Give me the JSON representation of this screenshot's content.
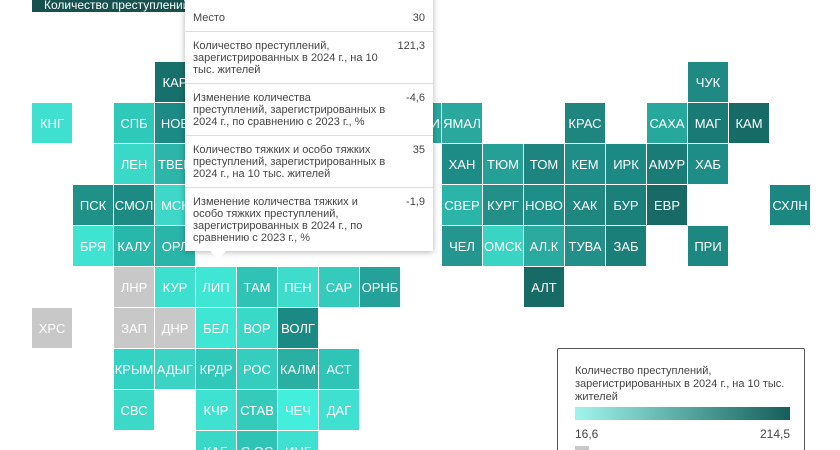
{
  "header": {
    "button": "Количество преступлений"
  },
  "tiles": [
    {
      "label": "КАР",
      "color": "#17706c"
    },
    {
      "label": "ЧУК",
      "color": "#1f8a84"
    },
    {
      "label": "КНГ",
      "color": "#3fe0d0"
    },
    {
      "label": "СПБ",
      "color": "#2ec9b8"
    },
    {
      "label": "НОВ",
      "color": "#1c8a85"
    },
    {
      "label": "КОМИ",
      "color": "#27a89c"
    },
    {
      "label": "ЯМАЛ",
      "color": "#2aa89e"
    },
    {
      "label": "КРАС",
      "color": "#1f857f"
    },
    {
      "label": "САХА",
      "color": "#27a89c"
    },
    {
      "label": "МАГ",
      "color": "#1a7a75"
    },
    {
      "label": "КАМ",
      "color": "#176b67"
    },
    {
      "label": "ЛЕН",
      "color": "#3ad8c6"
    },
    {
      "label": "ТВЕР",
      "color": "#2cb5a8"
    },
    {
      "label": "ХАН",
      "color": "#1e8c86"
    },
    {
      "label": "ТЮМ",
      "color": "#25a096"
    },
    {
      "label": "ТОМ",
      "color": "#1d847f"
    },
    {
      "label": "КЕМ",
      "color": "#1f8e88"
    },
    {
      "label": "ИРК",
      "color": "#1c8a84"
    },
    {
      "label": "АМУР",
      "color": "#1a7c77"
    },
    {
      "label": "ХАБ",
      "color": "#1f8d87"
    },
    {
      "label": "ПСК",
      "color": "#1f9189"
    },
    {
      "label": "СМОЛ",
      "color": "#1d8a84"
    },
    {
      "label": "МСК",
      "color": "#3fd8c8"
    },
    {
      "label": "СВЕР",
      "color": "#2bb5a9"
    },
    {
      "label": "КУРГ",
      "color": "#228f89"
    },
    {
      "label": "НОВО",
      "color": "#1e8f88"
    },
    {
      "label": "ХАК",
      "color": "#1d8780"
    },
    {
      "label": "БУР",
      "color": "#1b7f7a"
    },
    {
      "label": "ЕВР",
      "color": "#176a66"
    },
    {
      "label": "СХЛН",
      "color": "#1c8680"
    },
    {
      "label": "БРЯ",
      "color": "#3ee3d2"
    },
    {
      "label": "КАЛУ",
      "color": "#28b8aa"
    },
    {
      "label": "ОРЛ",
      "color": "#2ab5a9"
    },
    {
      "label": "ЧЕЛ",
      "color": "#24968f"
    },
    {
      "label": "ОМСК",
      "color": "#39d4c4"
    },
    {
      "label": "АЛ.К",
      "color": "#2bab9f"
    },
    {
      "label": "ТУВА",
      "color": "#228f89"
    },
    {
      "label": "ЗАБ",
      "color": "#1b7f79"
    },
    {
      "label": "ПРИ",
      "color": "#1d8882"
    },
    {
      "label": "ЛНР",
      "color": "#c8c8c8"
    },
    {
      "label": "КУР",
      "color": "#3de0cf"
    },
    {
      "label": "ЛИП",
      "color": "#40e6d4"
    },
    {
      "label": "ТАМ",
      "color": "#2fc3b5"
    },
    {
      "label": "ПЕН",
      "color": "#3fdccb"
    },
    {
      "label": "САР",
      "color": "#34cbbd"
    },
    {
      "label": "ОРНБ",
      "color": "#24a198"
    },
    {
      "label": "АЛТ",
      "color": "#176b67"
    },
    {
      "label": "ХРС",
      "color": "#c8c8c8"
    },
    {
      "label": "ЗАП",
      "color": "#c8c8c8"
    },
    {
      "label": "ДНР",
      "color": "#c8c8c8"
    },
    {
      "label": "БЕЛ",
      "color": "#40e6d4"
    },
    {
      "label": "ВОР",
      "color": "#3ad8c7"
    },
    {
      "label": "ВОЛГ",
      "color": "#1c8a84"
    },
    {
      "label": "КРЫМ",
      "color": "#34d2c2"
    },
    {
      "label": "АДЫГ",
      "color": "#3ad3c4"
    },
    {
      "label": "КРДР",
      "color": "#30c9b9"
    },
    {
      "label": "РОС",
      "color": "#35cdbd"
    },
    {
      "label": "КАЛМ",
      "color": "#2aafa3"
    },
    {
      "label": "АСТ",
      "color": "#2fc5b6"
    },
    {
      "label": "СВС",
      "color": "#3dd9c8"
    },
    {
      "label": "КЧР",
      "color": "#3fe2d1"
    },
    {
      "label": "СТАВ",
      "color": "#35cbbb"
    },
    {
      "label": "ЧЕЧ",
      "color": "#44eedd"
    },
    {
      "label": "ДАГ",
      "color": "#3fe0cf"
    },
    {
      "label": "КАБ",
      "color": "#3ad8c7"
    },
    {
      "label": "С.ОС",
      "color": "#2fc3b5"
    },
    {
      "label": "ИНГ",
      "color": "#3fe0cf"
    }
  ],
  "tooltip": {
    "rows": [
      {
        "label": "Место",
        "value": "30"
      },
      {
        "label": "Количество преступлений, зарегистрированных в 2024 г., на 10 тыс. жителей",
        "value": "121,3"
      },
      {
        "label": "Изменение количества преступлений, зарегистрированных в 2024 г., по сравнению с 2023 г., %",
        "value": "-4,6"
      },
      {
        "label": "Количество тяжких и особо тяжких преступлений, зарегистрированных в 2024 г., на 10 тыс. жителей",
        "value": "35"
      },
      {
        "label": "Изменение количества тяжких и особо тяжких преступлений, зарегистрированных в 2024 г., по сравнению с 2023 г., %",
        "value": "-1,9"
      }
    ]
  },
  "legend": {
    "title": "Количество преступлений, зарегистрированных в 2024 г., на 10 тыс. жителей",
    "min": "16,6",
    "max": "214,5",
    "color_low": "#9ff5ec",
    "color_high": "#155e5b",
    "no_data_color": "#c8c8c8"
  }
}
